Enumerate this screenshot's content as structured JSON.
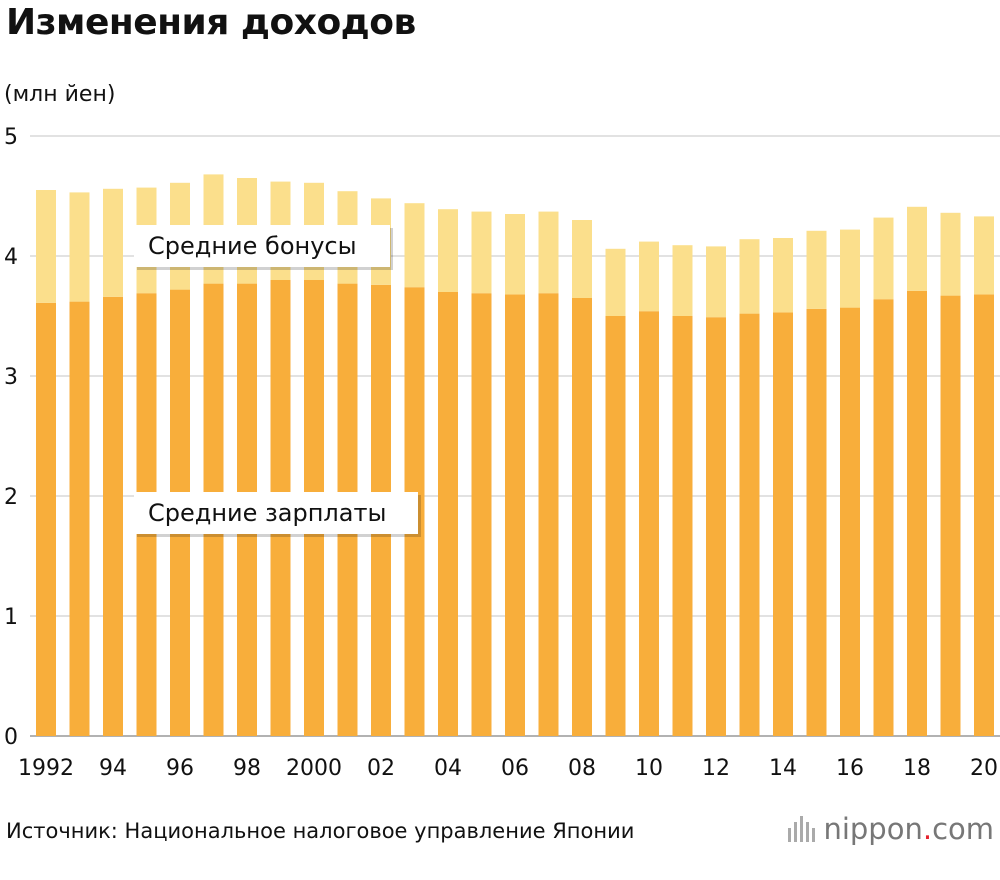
{
  "title": "Изменения доходов",
  "unit_label": "(млн йен)",
  "source": "Источник: Национальное налоговое управление Японии",
  "brand": {
    "name": "nippon",
    "dot": ".",
    "suffix": "com",
    "icon": "nippon-bars-icon"
  },
  "colors": {
    "salary": "#f8ae3b",
    "bonus": "#fbdf8c",
    "grid": "#d8d8d8",
    "brand_dot": "#e5222e"
  },
  "chart_data": {
    "type": "bar",
    "stacked": true,
    "x": [
      1992,
      1993,
      1994,
      1995,
      1996,
      1997,
      1998,
      1999,
      2000,
      2001,
      2002,
      2003,
      2004,
      2005,
      2006,
      2007,
      2008,
      2009,
      2010,
      2011,
      2012,
      2013,
      2014,
      2015,
      2016,
      2017,
      2018,
      2019,
      2020
    ],
    "tick_labels": [
      "1992",
      "",
      "94",
      "",
      "96",
      "",
      "98",
      "",
      "2000",
      "",
      "02",
      "",
      "04",
      "",
      "06",
      "",
      "08",
      "",
      "10",
      "",
      "12",
      "",
      "14",
      "",
      "16",
      "",
      "18",
      "",
      "20"
    ],
    "series": [
      {
        "key": "salary",
        "name": "Средние зарплаты",
        "values": [
          3.61,
          3.62,
          3.66,
          3.69,
          3.72,
          3.77,
          3.77,
          3.8,
          3.8,
          3.77,
          3.76,
          3.74,
          3.7,
          3.69,
          3.68,
          3.69,
          3.65,
          3.5,
          3.54,
          3.5,
          3.49,
          3.52,
          3.53,
          3.56,
          3.57,
          3.64,
          3.71,
          3.67,
          3.68
        ]
      },
      {
        "key": "bonus",
        "name": "Средние бонусы",
        "values": [
          0.94,
          0.91,
          0.9,
          0.88,
          0.89,
          0.91,
          0.88,
          0.82,
          0.81,
          0.77,
          0.72,
          0.7,
          0.69,
          0.68,
          0.67,
          0.68,
          0.65,
          0.56,
          0.58,
          0.59,
          0.59,
          0.62,
          0.62,
          0.65,
          0.65,
          0.68,
          0.7,
          0.69,
          0.65
        ]
      }
    ],
    "ylim": [
      0,
      5
    ],
    "y_ticks": [
      0,
      1,
      2,
      3,
      4,
      5
    ],
    "grid": true
  }
}
